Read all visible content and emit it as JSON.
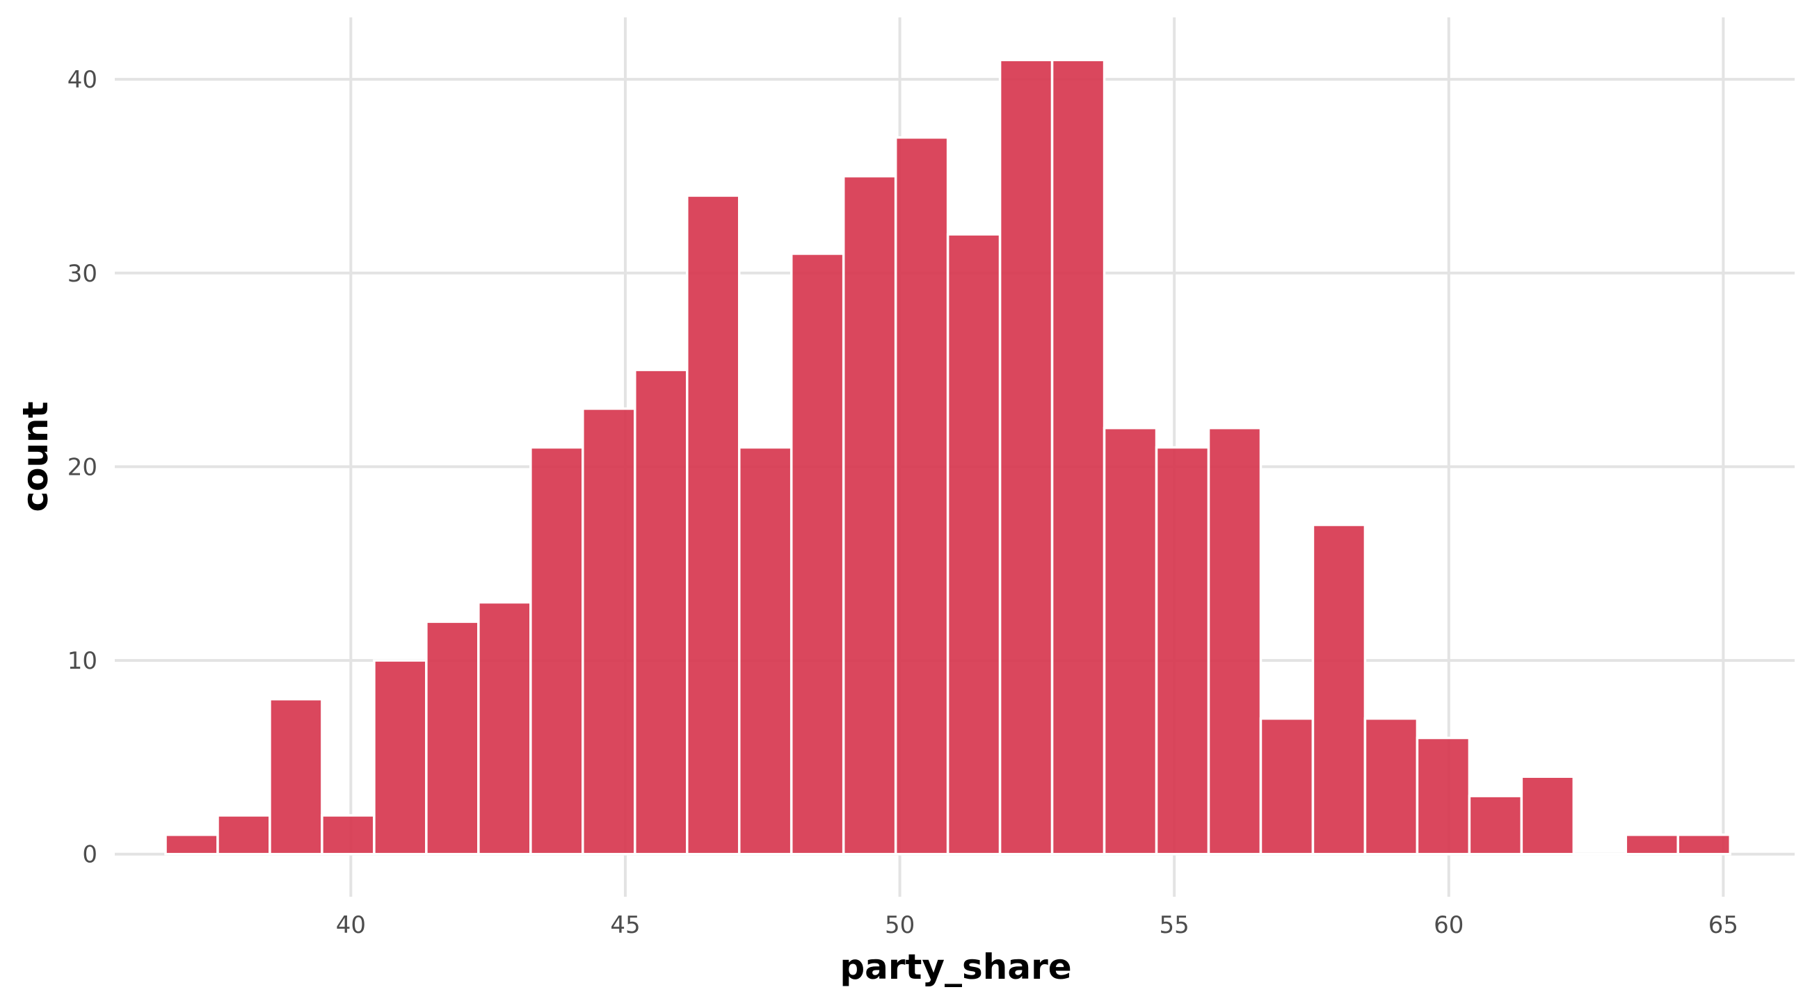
{
  "chart_data": {
    "type": "histogram",
    "xlabel": "party_share",
    "ylabel": "count",
    "bin_width": 0.95,
    "xlim": [
      35.7,
      66.3
    ],
    "ylim": [
      -2.2,
      43.2
    ],
    "x_ticks": [
      40,
      45,
      50,
      55,
      60,
      65
    ],
    "y_ticks": [
      0,
      10,
      20,
      30,
      40
    ],
    "grid": true,
    "legend": "none",
    "bin_centers": [
      37.1,
      38.05,
      39.0,
      39.95,
      40.9,
      41.85,
      42.8,
      43.75,
      44.7,
      45.65,
      46.6,
      47.55,
      48.5,
      49.45,
      50.4,
      51.35,
      52.3,
      53.25,
      54.2,
      55.15,
      56.1,
      57.05,
      58.0,
      58.95,
      59.9,
      60.85,
      61.8,
      62.75,
      63.7,
      64.65
    ],
    "counts": [
      1,
      2,
      8,
      2,
      10,
      12,
      13,
      21,
      23,
      25,
      34,
      21,
      31,
      35,
      37,
      32,
      41,
      41,
      22,
      21,
      22,
      7,
      17,
      7,
      6,
      3,
      4,
      0,
      1,
      1
    ],
    "bar_color": "#d7374f",
    "grid_color": "#e3e3e3"
  }
}
